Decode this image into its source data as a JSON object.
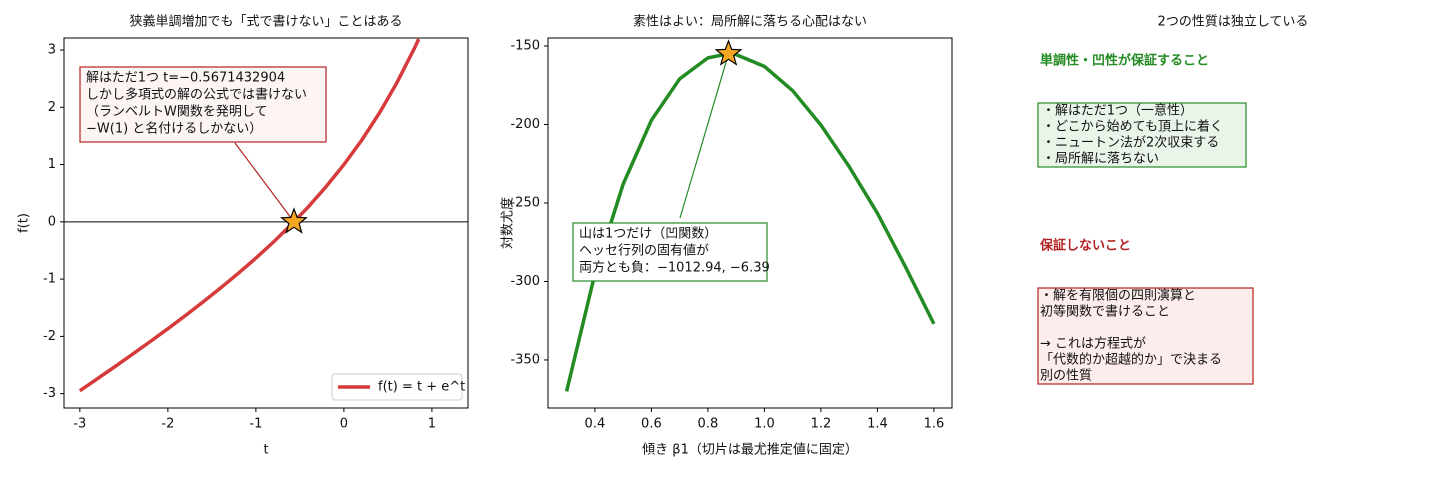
{
  "chart_data": [
    {
      "type": "line",
      "title": "狭義単調増加でも「式で書けない」ことはある",
      "xlabel": "t",
      "ylabel": "f(t)",
      "x": [
        -3,
        -2.8,
        -2.6,
        -2.4,
        -2.2,
        -2,
        -1.8,
        -1.6,
        -1.4,
        -1.2,
        -1,
        -0.8,
        -0.6,
        -0.4,
        -0.2,
        0,
        0.2,
        0.4,
        0.6,
        0.8,
        0.85
      ],
      "series": [
        {
          "name": "f(t) = t + e^t",
          "color": "#d63a3a",
          "values": [
            -2.95,
            -2.739,
            -2.526,
            -2.309,
            -2.089,
            -1.865,
            -1.635,
            -1.398,
            -1.153,
            -0.899,
            -0.632,
            -0.351,
            -0.051,
            0.27,
            0.619,
            1,
            1.421,
            1.892,
            2.422,
            3.026,
            3.19
          ]
        }
      ],
      "xlim": [
        -3.18,
        1.41
      ],
      "ylim": [
        -3.25,
        3.21
      ],
      "xticks": [
        -3,
        -2,
        -1,
        0,
        1
      ],
      "yticks": [
        -3,
        -2,
        -1,
        0,
        1,
        2,
        3
      ],
      "hline": 0,
      "marker": {
        "x": -0.5671432904,
        "y": 0
      },
      "legend": "lower right",
      "annotation": [
        "解はただ1つ t=−0.5671432904",
        "しかし多項式の解の公式では書けない",
        "（ランベルトW関数を発明して",
        "−W(1) と名付けるしかない）"
      ],
      "annotation_color": "#b22222"
    },
    {
      "type": "line",
      "title": "素性はよい：局所解に落ちる心配はない",
      "xlabel": "傾き β1（切片は最尤推定値に固定）",
      "ylabel": "対数尤度",
      "x": [
        0.3,
        0.4,
        0.5,
        0.6,
        0.7,
        0.8,
        0.87,
        0.9,
        1.0,
        1.1,
        1.2,
        1.3,
        1.4,
        1.5,
        1.6
      ],
      "series": [
        {
          "name": "対数尤度",
          "color": "#228b22",
          "values": [
            -370,
            -295.1,
            -238.1,
            -197.3,
            -170.9,
            -157.6,
            -155,
            -155.5,
            -163,
            -178.5,
            -200.3,
            -226.9,
            -256.5,
            -291,
            -327
          ]
        }
      ],
      "xlim": [
        0.234,
        1.664
      ],
      "ylim": [
        -380.6,
        -144.9
      ],
      "xticks": [
        0.4,
        0.6,
        0.8,
        {
          "value": 1.0,
          "label": "1.0"
        },
        1.2,
        1.4,
        1.6
      ],
      "yticks": [
        -350,
        -300,
        -250,
        -200,
        -150
      ],
      "marker": {
        "x": 0.873,
        "y": -155
      },
      "annotation": [
        "山は1つだけ（凹関数）",
        "ヘッセ行列の固有値が",
        "両方とも負：−1012.94, −6.39"
      ],
      "annotation_color": "#228b22"
    }
  ],
  "side_panel": {
    "title": "2つの性質は独立している",
    "good": {
      "heading": "単調性・凹性が保証すること",
      "lines": [
        "・解はただ1つ（一意性）",
        "・どこから始めても頂上に着く",
        "・ニュートン法が2次収束する",
        "・局所解に落ちない"
      ]
    },
    "bad": {
      "heading": "保証しないこと",
      "paragraphs": [
        [
          "・解を有限個の四則演算と",
          " 初等関数で書けること"
        ],
        [
          "→ これは方程式が",
          " 「代数的か超越的か」で決まる",
          " 別の性質"
        ]
      ]
    }
  }
}
